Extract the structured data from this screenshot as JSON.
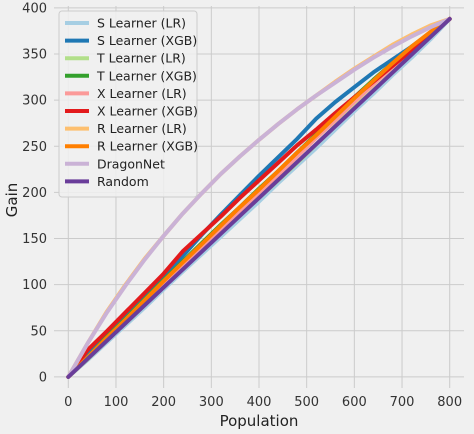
{
  "chart_data": {
    "type": "line",
    "xlabel": "Population",
    "ylabel": "Gain",
    "xlim": [
      -30,
      830
    ],
    "ylim": [
      -12,
      402
    ],
    "xticks": [
      0,
      100,
      200,
      300,
      400,
      500,
      600,
      700,
      800
    ],
    "yticks": [
      0,
      50,
      100,
      150,
      200,
      250,
      300,
      350,
      400
    ],
    "grid": true,
    "legend_position": "top-left",
    "series": [
      {
        "name": "S Learner (LR)",
        "color": "#a6cee3",
        "x": [
          0,
          40,
          80,
          120,
          160,
          200,
          240,
          280,
          320,
          360,
          400,
          440,
          480,
          520,
          560,
          600,
          640,
          680,
          720,
          760,
          800
        ],
        "y": [
          0,
          18,
          37,
          56,
          75,
          95,
          114,
          133,
          152,
          171,
          190,
          210,
          229,
          248,
          268,
          288,
          307,
          327,
          346,
          366,
          388
        ]
      },
      {
        "name": "S Learner (XGB)",
        "color": "#1f78b4",
        "x": [
          0,
          40,
          80,
          120,
          160,
          200,
          240,
          280,
          320,
          360,
          400,
          440,
          480,
          520,
          560,
          600,
          640,
          680,
          720,
          760,
          800
        ],
        "y": [
          0,
          23,
          46,
          67,
          88,
          110,
          131,
          154,
          176,
          197,
          218,
          238,
          258,
          280,
          298,
          314,
          330,
          344,
          358,
          373,
          388
        ]
      },
      {
        "name": "T Learner (LR)",
        "color": "#b2df8a",
        "x": [
          0,
          40,
          80,
          120,
          160,
          200,
          240,
          280,
          320,
          360,
          400,
          440,
          480,
          520,
          560,
          600,
          640,
          680,
          720,
          760,
          800
        ],
        "y": [
          0,
          19,
          39,
          58,
          78,
          98,
          117,
          137,
          156,
          175,
          194,
          213,
          232,
          252,
          272,
          292,
          311,
          330,
          350,
          369,
          388
        ]
      },
      {
        "name": "T Learner (XGB)",
        "color": "#33a02c",
        "x": [
          0,
          40,
          80,
          120,
          160,
          200,
          240,
          280,
          320,
          360,
          400,
          440,
          480,
          520,
          560,
          600,
          640,
          680,
          720,
          760,
          800
        ],
        "y": [
          0,
          21,
          43,
          63,
          84,
          105,
          125,
          145,
          165,
          184,
          204,
          223,
          243,
          263,
          283,
          303,
          322,
          340,
          358,
          373,
          388
        ]
      },
      {
        "name": "X Learner (LR)",
        "color": "#fb9a99",
        "x": [
          0,
          40,
          80,
          120,
          160,
          200,
          240,
          280,
          320,
          360,
          400,
          440,
          480,
          520,
          560,
          600,
          640,
          680,
          720,
          760,
          800
        ],
        "y": [
          0,
          20,
          41,
          61,
          81,
          101,
          121,
          141,
          160,
          180,
          200,
          219,
          239,
          259,
          278,
          298,
          317,
          336,
          355,
          372,
          388
        ]
      },
      {
        "name": "X Learner (XGB)",
        "color": "#e31a1c",
        "x": [
          0,
          40,
          80,
          120,
          160,
          200,
          240,
          280,
          320,
          360,
          400,
          440,
          480,
          520,
          560,
          600,
          640,
          680,
          720,
          760,
          800
        ],
        "y": [
          0,
          29,
          49,
          70,
          91,
          112,
          136,
          155,
          174,
          194,
          213,
          232,
          251,
          268,
          286,
          303,
          320,
          337,
          354,
          371,
          388
        ]
      },
      {
        "name": "R Learner (LR)",
        "color": "#fdbf6f",
        "x": [
          0,
          40,
          80,
          120,
          160,
          200,
          240,
          280,
          320,
          360,
          400,
          440,
          480,
          520,
          560,
          600,
          640,
          680,
          720,
          760,
          800
        ],
        "y": [
          0,
          36,
          70,
          100,
          128,
          153,
          177,
          199,
          220,
          239,
          257,
          274,
          290,
          305,
          320,
          334,
          347,
          360,
          371,
          381,
          388
        ]
      },
      {
        "name": "R Learner (XGB)",
        "color": "#ff7f00",
        "x": [
          0,
          40,
          80,
          120,
          160,
          200,
          240,
          280,
          320,
          360,
          400,
          440,
          480,
          520,
          560,
          600,
          640,
          680,
          720,
          760,
          800
        ],
        "y": [
          0,
          21,
          42,
          62,
          83,
          104,
          124,
          144,
          164,
          184,
          203,
          223,
          243,
          262,
          282,
          302,
          321,
          340,
          358,
          374,
          388
        ]
      },
      {
        "name": "DragonNet",
        "color": "#cab2d6",
        "x": [
          0,
          40,
          80,
          120,
          160,
          200,
          240,
          280,
          320,
          360,
          400,
          440,
          480,
          520,
          560,
          600,
          640,
          680,
          720,
          760,
          800
        ],
        "y": [
          0,
          36,
          69,
          99,
          127,
          153,
          177,
          199,
          220,
          239,
          257,
          274,
          290,
          305,
          319,
          333,
          346,
          358,
          369,
          379,
          388
        ]
      },
      {
        "name": "Random",
        "color": "#6a3d9a",
        "x": [
          0,
          800
        ],
        "y": [
          0,
          388
        ]
      }
    ]
  }
}
